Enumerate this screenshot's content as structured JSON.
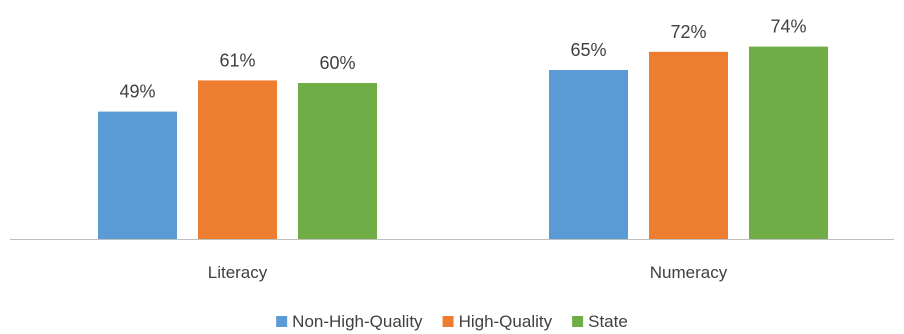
{
  "chart_data": {
    "type": "bar",
    "categories": [
      "Literacy",
      "Numeracy"
    ],
    "series": [
      {
        "name": "Non-High-Quality",
        "values": [
          49,
          65
        ],
        "labels": [
          "49%",
          "65%"
        ],
        "color": "#5B9BD5"
      },
      {
        "name": "High-Quality",
        "values": [
          61,
          72
        ],
        "labels": [
          "61%",
          "72%"
        ],
        "color": "#ED7D31"
      },
      {
        "name": "State",
        "values": [
          60,
          74
        ],
        "labels": [
          "60%",
          "74%"
        ],
        "color": "#70AD47"
      }
    ],
    "ylim": [
      0,
      100
    ],
    "grid": false,
    "legend_position": "bottom",
    "axis_color": "#BFBFBF"
  }
}
